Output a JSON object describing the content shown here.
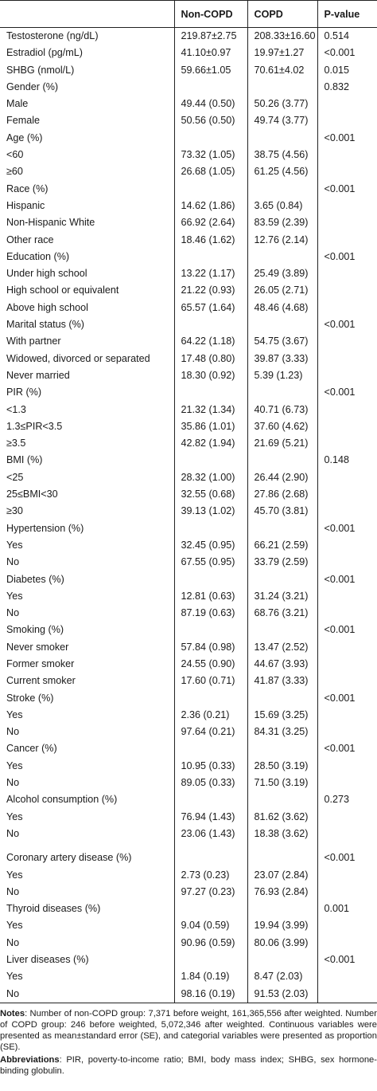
{
  "headers": [
    "",
    "Non-COPD",
    "COPD",
    "P-value"
  ],
  "rows": [
    {
      "label": "Testosterone (ng/dL)",
      "non": "219.87±2.75",
      "copd": "208.33±16.60",
      "p": "0.514"
    },
    {
      "label": "Estradiol (pg/mL)",
      "non": "41.10±0.97",
      "copd": "19.97±1.27",
      "p": "<0.001"
    },
    {
      "label": "SHBG (nmol/L)",
      "non": "59.66±1.05",
      "copd": "70.61±4.02",
      "p": "0.015"
    },
    {
      "label": "Gender (%)",
      "non": "",
      "copd": "",
      "p": "0.832"
    },
    {
      "label": "Male",
      "non": "49.44 (0.50)",
      "copd": "50.26 (3.77)",
      "p": ""
    },
    {
      "label": "Female",
      "non": "50.56 (0.50)",
      "copd": "49.74 (3.77)",
      "p": ""
    },
    {
      "label": "Age (%)",
      "non": "",
      "copd": "",
      "p": "<0.001"
    },
    {
      "label": "<60",
      "non": "73.32 (1.05)",
      "copd": "38.75 (4.56)",
      "p": ""
    },
    {
      "label": "≥60",
      "non": "26.68 (1.05)",
      "copd": "61.25 (4.56)",
      "p": ""
    },
    {
      "label": "Race (%)",
      "non": "",
      "copd": "",
      "p": "<0.001"
    },
    {
      "label": "Hispanic",
      "non": "14.62 (1.86)",
      "copd": "3.65 (0.84)",
      "p": ""
    },
    {
      "label": "Non-Hispanic White",
      "non": "66.92 (2.64)",
      "copd": "83.59 (2.39)",
      "p": ""
    },
    {
      "label": "Other race",
      "non": "18.46 (1.62)",
      "copd": "12.76 (2.14)",
      "p": ""
    },
    {
      "label": "Education (%)",
      "non": "",
      "copd": "",
      "p": "<0.001"
    },
    {
      "label": "Under high school",
      "non": "13.22 (1.17)",
      "copd": "25.49 (3.89)",
      "p": ""
    },
    {
      "label": "High school or equivalent",
      "non": "21.22 (0.93)",
      "copd": "26.05 (2.71)",
      "p": ""
    },
    {
      "label": "Above high school",
      "non": "65.57 (1.64)",
      "copd": "48.46 (4.68)",
      "p": ""
    },
    {
      "label": "Marital status (%)",
      "non": "",
      "copd": "",
      "p": "<0.001"
    },
    {
      "label": "With partner",
      "non": "64.22 (1.18)",
      "copd": "54.75 (3.67)",
      "p": ""
    },
    {
      "label": "Widowed, divorced or separated",
      "non": "17.48 (0.80)",
      "copd": "39.87 (3.33)",
      "p": ""
    },
    {
      "label": "Never married",
      "non": "18.30 (0.92)",
      "copd": "5.39 (1.23)",
      "p": ""
    },
    {
      "label": "PIR (%)",
      "non": "",
      "copd": "",
      "p": "<0.001"
    },
    {
      "label": "<1.3",
      "non": "21.32 (1.34)",
      "copd": "40.71 (6.73)",
      "p": ""
    },
    {
      "label": "1.3≤PIR<3.5",
      "non": "35.86 (1.01)",
      "copd": "37.60 (4.62)",
      "p": ""
    },
    {
      "label": "≥3.5",
      "non": "42.82 (1.94)",
      "copd": "21.69 (5.21)",
      "p": ""
    },
    {
      "label": "BMI (%)",
      "non": "",
      "copd": "",
      "p": "0.148"
    },
    {
      "label": "<25",
      "non": "28.32 (1.00)",
      "copd": "26.44 (2.90)",
      "p": ""
    },
    {
      "label": "25≤BMI<30",
      "non": "32.55 (0.68)",
      "copd": "27.86 (2.68)",
      "p": ""
    },
    {
      "label": "≥30",
      "non": "39.13 (1.02)",
      "copd": "45.70 (3.81)",
      "p": ""
    },
    {
      "label": "Hypertension (%)",
      "non": "",
      "copd": "",
      "p": "<0.001"
    },
    {
      "label": "Yes",
      "non": "32.45 (0.95)",
      "copd": "66.21 (2.59)",
      "p": ""
    },
    {
      "label": "No",
      "non": "67.55 (0.95)",
      "copd": "33.79 (2.59)",
      "p": ""
    },
    {
      "label": "Diabetes (%)",
      "non": "",
      "copd": "",
      "p": "<0.001"
    },
    {
      "label": "Yes",
      "non": "12.81 (0.63)",
      "copd": "31.24 (3.21)",
      "p": ""
    },
    {
      "label": "No",
      "non": "87.19 (0.63)",
      "copd": "68.76 (3.21)",
      "p": ""
    },
    {
      "label": "Smoking (%)",
      "non": "",
      "copd": "",
      "p": "<0.001"
    },
    {
      "label": "Never smoker",
      "non": "57.84 (0.98)",
      "copd": "13.47 (2.52)",
      "p": ""
    },
    {
      "label": "Former smoker",
      "non": "24.55 (0.90)",
      "copd": "44.67 (3.93)",
      "p": ""
    },
    {
      "label": "Current smoker",
      "non": "17.60 (0.71)",
      "copd": "41.87 (3.33)",
      "p": ""
    },
    {
      "label": "Stroke (%)",
      "non": "",
      "copd": "",
      "p": "<0.001"
    },
    {
      "label": "Yes",
      "non": "2.36 (0.21)",
      "copd": "15.69 (3.25)",
      "p": ""
    },
    {
      "label": "No",
      "non": "97.64 (0.21)",
      "copd": "84.31 (3.25)",
      "p": ""
    },
    {
      "label": "Cancer (%)",
      "non": "",
      "copd": "",
      "p": "<0.001"
    },
    {
      "label": "Yes",
      "non": "10.95 (0.33)",
      "copd": "28.50 (3.19)",
      "p": ""
    },
    {
      "label": "No",
      "non": "89.05 (0.33)",
      "copd": "71.50 (3.19)",
      "p": ""
    },
    {
      "label": "Alcohol consumption (%)",
      "non": "",
      "copd": "",
      "p": "0.273"
    },
    {
      "label": "Yes",
      "non": "76.94 (1.43)",
      "copd": "81.62 (3.62)",
      "p": ""
    },
    {
      "label": "No",
      "non": "23.06 (1.43)",
      "copd": "18.38 (3.62)",
      "p": ""
    }
  ],
  "rows2": [
    {
      "label": "Coronary artery disease (%)",
      "non": "",
      "copd": "",
      "p": "<0.001"
    },
    {
      "label": "Yes",
      "non": "2.73 (0.23)",
      "copd": "23.07 (2.84)",
      "p": ""
    },
    {
      "label": "No",
      "non": "97.27 (0.23)",
      "copd": "76.93 (2.84)",
      "p": ""
    },
    {
      "label": "Thyroid diseases (%)",
      "non": "",
      "copd": "",
      "p": "0.001"
    },
    {
      "label": "Yes",
      "non": "9.04 (0.59)",
      "copd": "19.94 (3.99)",
      "p": ""
    },
    {
      "label": "No",
      "non": "90.96 (0.59)",
      "copd": "80.06 (3.99)",
      "p": ""
    },
    {
      "label": "Liver diseases (%)",
      "non": "",
      "copd": "",
      "p": "<0.001"
    },
    {
      "label": "Yes",
      "non": "1.84 (0.19)",
      "copd": "8.47 (2.03)",
      "p": ""
    },
    {
      "label": "No",
      "non": "98.16 (0.19)",
      "copd": "91.53 (2.03)",
      "p": ""
    }
  ],
  "notes": {
    "notes_label": "Notes",
    "notes_text": ": Number of non-COPD group: 7,371 before weight, 161,365,556 after weighted. Number of COPD group: 246 before weighted, 5,072,346 after weighted. Continuous variables were presented as mean±standard error (SE), and categorial variables were presented as proportion (SE).",
    "abbr_label": "Abbreviations",
    "abbr_text": ": PIR, poverty-to-income ratio; BMI, body mass index; SHBG, sex hormone-binding globulin."
  }
}
